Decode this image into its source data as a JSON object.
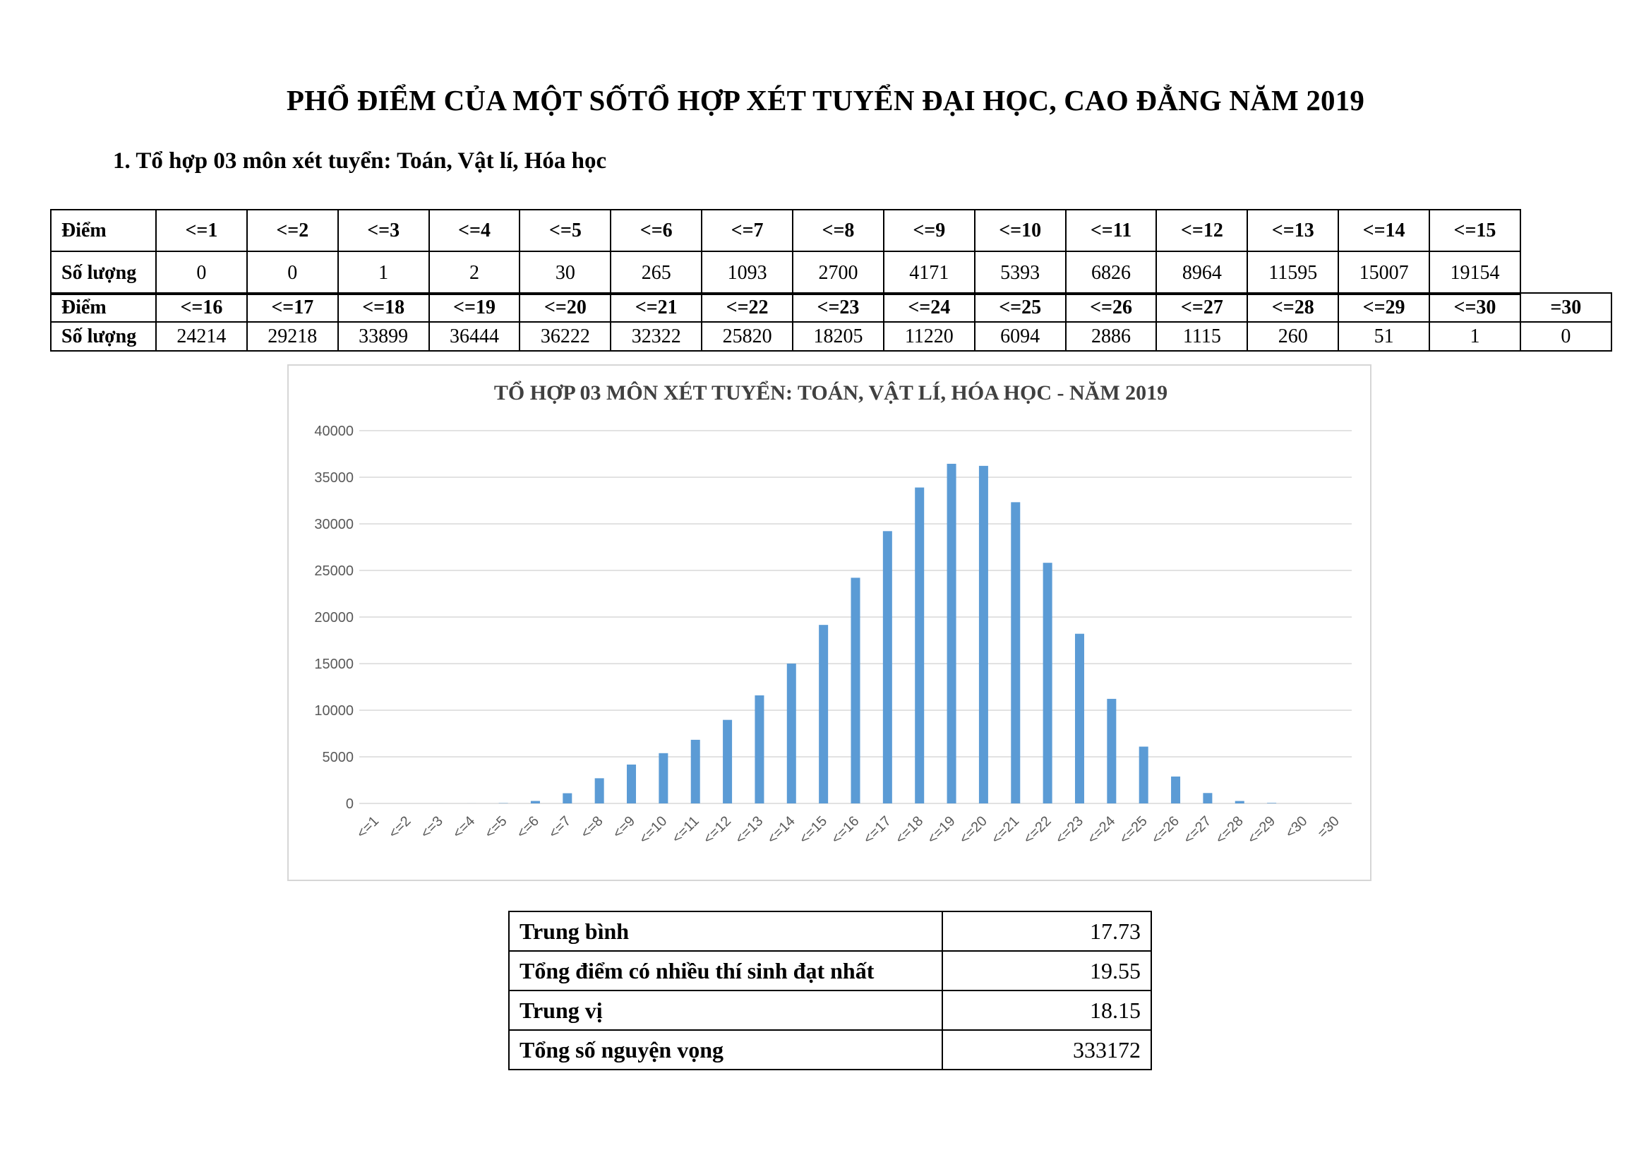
{
  "document": {
    "title": "PHỔ ĐIỂM CỦA MỘT SỐTỔ HỢP XÉT TUYỂN ĐẠI HỌC, CAO ĐẲNG NĂM 2019",
    "section_heading": "1. Tổ hợp 03 môn xét tuyển: Toán, Vật lí, Hóa học"
  },
  "distribution_table": {
    "row_label_score": "Điểm",
    "row_label_count": "Số lượng",
    "part1": {
      "scores": [
        "<=1",
        "<=2",
        "<=3",
        "<=4",
        "<=5",
        "<=6",
        "<=7",
        "<=8",
        "<=9",
        "<=10",
        "<=11",
        "<=12",
        "<=13",
        "<=14",
        "<=15"
      ],
      "counts": [
        "0",
        "0",
        "1",
        "2",
        "30",
        "265",
        "1093",
        "2700",
        "4171",
        "5393",
        "6826",
        "8964",
        "11595",
        "15007",
        "19154"
      ]
    },
    "part2": {
      "scores": [
        "<=16",
        "<=17",
        "<=18",
        "<=19",
        "<=20",
        "<=21",
        "<=22",
        "<=23",
        "<=24",
        "<=25",
        "<=26",
        "<=27",
        "<=28",
        "<=29",
        "<=30",
        "=30"
      ],
      "counts": [
        "24214",
        "29218",
        "33899",
        "36444",
        "36222",
        "32322",
        "25820",
        "18205",
        "11220",
        "6094",
        "2886",
        "1115",
        "260",
        "51",
        "1",
        "0"
      ]
    }
  },
  "chart_data": {
    "type": "bar",
    "title": "TỔ HỢP 03 MÔN XÉT TUYỂN: TOÁN, VẬT LÍ, HÓA HỌC - NĂM 2019",
    "xlabel": "",
    "ylabel": "",
    "categories": [
      "<=1",
      "<=2",
      "<=3",
      "<=4",
      "<=5",
      "<=6",
      "<=7",
      "<=8",
      "<=9",
      "<=10",
      "<=11",
      "<=12",
      "<=13",
      "<=14",
      "<=15",
      "<=16",
      "<=17",
      "<=18",
      "<=19",
      "<=20",
      "<=21",
      "<=22",
      "<=23",
      "<=24",
      "<=25",
      "<=26",
      "<=27",
      "<=28",
      "<=29",
      "<30",
      "=30"
    ],
    "values": [
      0,
      0,
      1,
      2,
      30,
      265,
      1093,
      2700,
      4171,
      5393,
      6826,
      8964,
      11595,
      15007,
      19154,
      24214,
      29218,
      33899,
      36444,
      36222,
      32322,
      25820,
      18205,
      11220,
      6094,
      2886,
      1115,
      260,
      51,
      1,
      0
    ],
    "ylim": [
      0,
      40000
    ],
    "yticks": [
      0,
      5000,
      10000,
      15000,
      20000,
      25000,
      30000,
      35000,
      40000
    ],
    "grid": true,
    "legend": "none",
    "bar_color": "#5b9bd5",
    "grid_color": "#d9d9d9",
    "tick_label_color": "#595959"
  },
  "stats_table": {
    "rows": [
      {
        "label": "Trung bình",
        "value": "17.73"
      },
      {
        "label": "Tổng điểm có nhiều thí sinh đạt nhất",
        "value": "19.55"
      },
      {
        "label": "Trung vị",
        "value": "18.15"
      },
      {
        "label": "Tổng số nguyện vọng",
        "value": "333172"
      }
    ]
  }
}
